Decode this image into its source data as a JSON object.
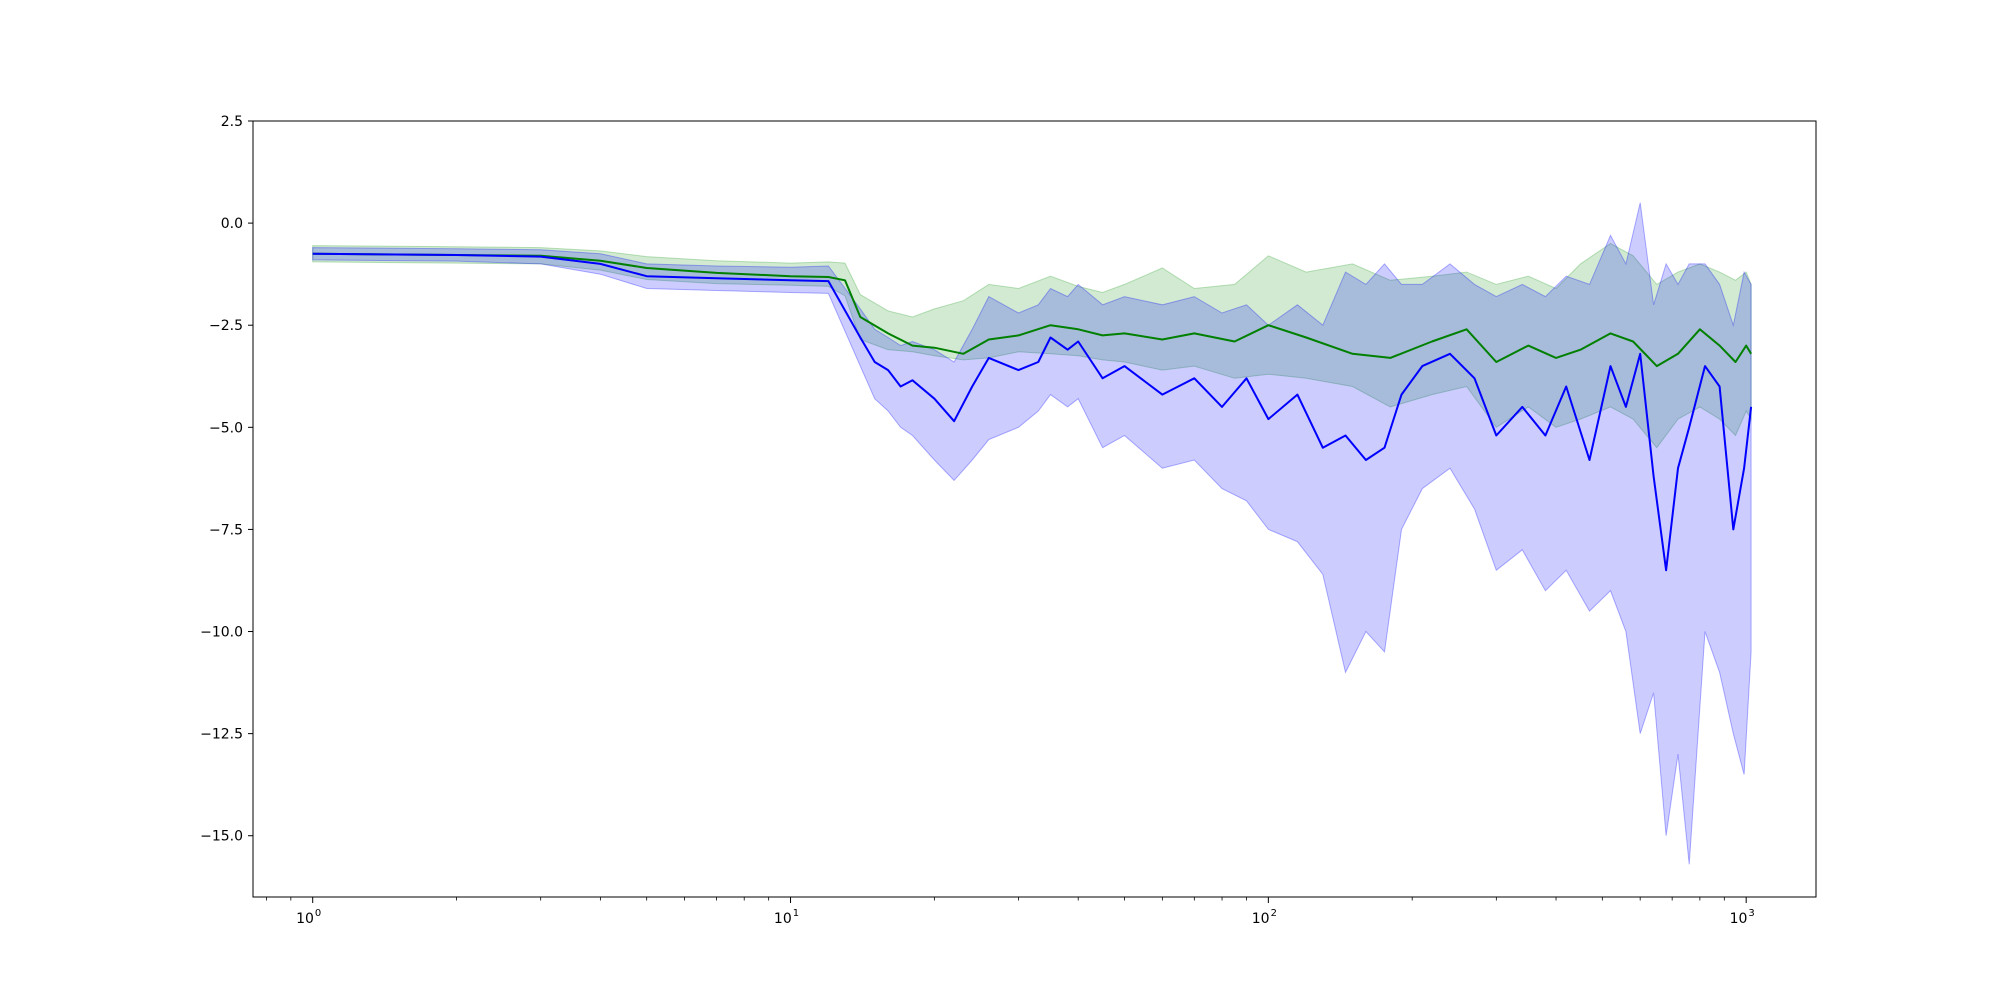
{
  "chart_data": {
    "type": "line",
    "title": "",
    "xlabel": "",
    "ylabel": "",
    "x_scale": "log",
    "xlim": [
      0.75,
      1400
    ],
    "ylim": [
      -16.5,
      2.5
    ],
    "x_ticks": [
      {
        "value": 1,
        "label": "10",
        "exp": "0"
      },
      {
        "value": 10,
        "label": "10",
        "exp": "1"
      },
      {
        "value": 100,
        "label": "10",
        "exp": "2"
      },
      {
        "value": 1000,
        "label": "10",
        "exp": "3"
      }
    ],
    "y_ticks": [
      {
        "value": 2.5,
        "label": "2.5"
      },
      {
        "value": 0,
        "label": "0.0"
      },
      {
        "value": -2.5,
        "label": "−2.5"
      },
      {
        "value": -5,
        "label": "−5.0"
      },
      {
        "value": -7.5,
        "label": "−7.5"
      },
      {
        "value": -10,
        "label": "−10.0"
      },
      {
        "value": -12.5,
        "label": "−12.5"
      },
      {
        "value": -15,
        "label": "−15.0"
      }
    ],
    "grid": false,
    "legend": "none",
    "series": [
      {
        "color": "#008000",
        "band_color": "#2ca02c",
        "points": [
          [
            1,
            -0.75,
            -0.55,
            -0.95
          ],
          [
            2,
            -0.78,
            -0.58,
            -0.98
          ],
          [
            3,
            -0.8,
            -0.6,
            -1.0
          ],
          [
            4,
            -0.92,
            -0.68,
            -1.15
          ],
          [
            5,
            -1.1,
            -0.82,
            -1.38
          ],
          [
            7,
            -1.22,
            -0.92,
            -1.48
          ],
          [
            10,
            -1.3,
            -0.98,
            -1.52
          ],
          [
            12,
            -1.32,
            -0.95,
            -1.55
          ],
          [
            13,
            -1.4,
            -0.98,
            -1.78
          ],
          [
            14,
            -2.3,
            -1.75,
            -2.85
          ],
          [
            16,
            -2.7,
            -2.15,
            -3.1
          ],
          [
            18,
            -3.0,
            -2.3,
            -3.15
          ],
          [
            20,
            -3.05,
            -2.1,
            -3.25
          ],
          [
            23,
            -3.2,
            -1.9,
            -3.35
          ],
          [
            26,
            -2.85,
            -1.5,
            -3.3
          ],
          [
            30,
            -2.75,
            -1.6,
            -3.15
          ],
          [
            35,
            -2.5,
            -1.3,
            -3.2
          ],
          [
            40,
            -2.6,
            -1.55,
            -3.25
          ],
          [
            45,
            -2.75,
            -1.7,
            -3.35
          ],
          [
            50,
            -2.7,
            -1.5,
            -3.4
          ],
          [
            60,
            -2.85,
            -1.1,
            -3.6
          ],
          [
            70,
            -2.7,
            -1.6,
            -3.5
          ],
          [
            85,
            -2.9,
            -1.5,
            -3.8
          ],
          [
            100,
            -2.5,
            -0.8,
            -3.7
          ],
          [
            120,
            -2.8,
            -1.2,
            -3.8
          ],
          [
            150,
            -3.2,
            -1.0,
            -4.0
          ],
          [
            180,
            -3.3,
            -1.4,
            -4.5
          ],
          [
            220,
            -2.9,
            -1.3,
            -4.2
          ],
          [
            260,
            -2.6,
            -1.2,
            -4.0
          ],
          [
            300,
            -3.4,
            -1.5,
            -5.0
          ],
          [
            350,
            -3.0,
            -1.3,
            -4.5
          ],
          [
            400,
            -3.3,
            -1.6,
            -5.0
          ],
          [
            450,
            -3.1,
            -1.0,
            -4.8
          ],
          [
            520,
            -2.7,
            -0.5,
            -4.5
          ],
          [
            580,
            -2.9,
            -0.8,
            -4.8
          ],
          [
            650,
            -3.5,
            -1.5,
            -5.5
          ],
          [
            720,
            -3.2,
            -1.2,
            -4.8
          ],
          [
            800,
            -2.6,
            -1.0,
            -4.5
          ],
          [
            880,
            -3.0,
            -1.2,
            -4.8
          ],
          [
            950,
            -3.4,
            -1.4,
            -5.2
          ],
          [
            1000,
            -3.0,
            -1.2,
            -4.6
          ],
          [
            1024,
            -3.2,
            -1.5,
            -4.8
          ]
        ]
      },
      {
        "color": "#0000ff",
        "band_color": "#0000ff",
        "points": [
          [
            1,
            -0.75,
            -0.6,
            -0.9
          ],
          [
            2,
            -0.78,
            -0.63,
            -0.93
          ],
          [
            3,
            -0.82,
            -0.65,
            -1.0
          ],
          [
            4,
            -1.0,
            -0.75,
            -1.25
          ],
          [
            5,
            -1.3,
            -1.0,
            -1.6
          ],
          [
            7,
            -1.35,
            -1.05,
            -1.65
          ],
          [
            10,
            -1.4,
            -1.08,
            -1.7
          ],
          [
            12,
            -1.42,
            -1.05,
            -1.72
          ],
          [
            14,
            -2.8,
            -2.1,
            -3.5
          ],
          [
            15,
            -3.4,
            -2.6,
            -4.3
          ],
          [
            16,
            -3.6,
            -2.8,
            -4.6
          ],
          [
            17,
            -4.0,
            -3.0,
            -5.0
          ],
          [
            18,
            -3.85,
            -2.9,
            -5.2
          ],
          [
            20,
            -4.3,
            -3.1,
            -5.8
          ],
          [
            22,
            -4.85,
            -3.4,
            -6.3
          ],
          [
            24,
            -4.0,
            -2.6,
            -5.8
          ],
          [
            26,
            -3.3,
            -1.8,
            -5.3
          ],
          [
            30,
            -3.6,
            -2.2,
            -5.0
          ],
          [
            33,
            -3.4,
            -2.0,
            -4.6
          ],
          [
            35,
            -2.8,
            -1.6,
            -4.2
          ],
          [
            38,
            -3.1,
            -1.8,
            -4.5
          ],
          [
            40,
            -2.9,
            -1.5,
            -4.3
          ],
          [
            45,
            -3.8,
            -2.0,
            -5.5
          ],
          [
            50,
            -3.5,
            -1.8,
            -5.2
          ],
          [
            60,
            -4.2,
            -2.0,
            -6.0
          ],
          [
            70,
            -3.8,
            -1.8,
            -5.8
          ],
          [
            80,
            -4.5,
            -2.2,
            -6.5
          ],
          [
            90,
            -3.8,
            -2.0,
            -6.8
          ],
          [
            100,
            -4.8,
            -2.5,
            -7.5
          ],
          [
            115,
            -4.2,
            -2.0,
            -7.8
          ],
          [
            130,
            -5.5,
            -2.5,
            -8.6
          ],
          [
            145,
            -5.2,
            -1.2,
            -11.0
          ],
          [
            160,
            -5.8,
            -1.5,
            -10.0
          ],
          [
            175,
            -5.5,
            -1.0,
            -10.5
          ],
          [
            190,
            -4.2,
            -1.5,
            -7.5
          ],
          [
            210,
            -3.5,
            -1.5,
            -6.5
          ],
          [
            240,
            -3.2,
            -1.0,
            -6.0
          ],
          [
            270,
            -3.8,
            -1.5,
            -7.0
          ],
          [
            300,
            -5.2,
            -1.8,
            -8.5
          ],
          [
            340,
            -4.5,
            -1.5,
            -8.0
          ],
          [
            380,
            -5.2,
            -1.8,
            -9.0
          ],
          [
            420,
            -4.0,
            -1.3,
            -8.5
          ],
          [
            470,
            -5.8,
            -1.5,
            -9.5
          ],
          [
            520,
            -3.5,
            -0.3,
            -9.0
          ],
          [
            560,
            -4.5,
            -1.0,
            -10.0
          ],
          [
            600,
            -3.2,
            0.5,
            -12.5
          ],
          [
            640,
            -6.2,
            -2.0,
            -11.5
          ],
          [
            680,
            -8.5,
            -1.0,
            -15.0
          ],
          [
            720,
            -6.0,
            -1.5,
            -13.0
          ],
          [
            760,
            -5.0,
            -1.0,
            -15.7
          ],
          [
            820,
            -3.5,
            -1.0,
            -10.0
          ],
          [
            880,
            -4.0,
            -1.5,
            -11.0
          ],
          [
            940,
            -7.5,
            -2.5,
            -12.5
          ],
          [
            990,
            -6.0,
            -1.2,
            -13.5
          ],
          [
            1024,
            -4.5,
            -1.5,
            -10.5
          ]
        ]
      }
    ]
  }
}
